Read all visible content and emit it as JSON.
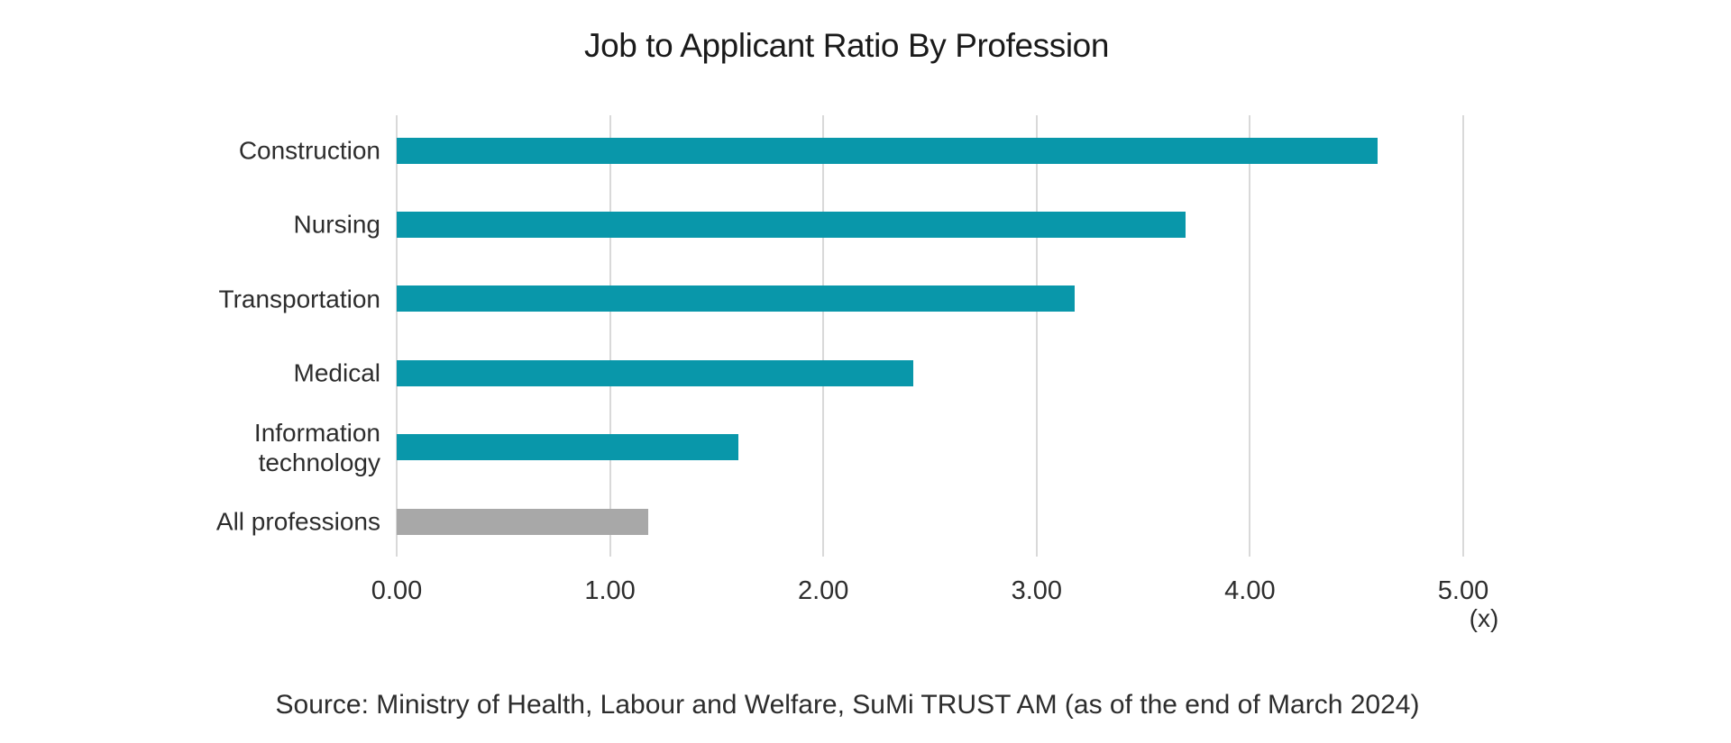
{
  "page": {
    "background_color": "#ffffff",
    "text_color": "#2d2d2d"
  },
  "chart_data": {
    "type": "bar",
    "orientation": "horizontal",
    "title": "Job to Applicant Ratio By Profession",
    "unit_label": "(x)",
    "categories": [
      "Construction",
      "Nursing",
      "Transportation",
      "Medical",
      "Information technology",
      "All professions"
    ],
    "values": [
      4.6,
      3.7,
      3.18,
      2.42,
      1.6,
      1.18
    ],
    "bar_colors": [
      "#0997aa",
      "#0997aa",
      "#0997aa",
      "#0997aa",
      "#0997aa",
      "#a8a8a8"
    ],
    "accent_color": "#0997aa",
    "highlight_gray": "#a8a8a8",
    "x_tick_values": [
      0,
      1,
      2,
      3,
      4,
      5
    ],
    "x_tick_labels": [
      "0.00",
      "1.00",
      "2.00",
      "3.00",
      "4.00",
      "5.00"
    ],
    "xlim": [
      0,
      5
    ],
    "grid": "vertical-gridlines-on",
    "gridline_color": "#d9d9d9",
    "legend": "none",
    "source": "Source: Ministry of Health, Labour and Welfare, SuMi TRUST AM (as of the end of March 2024)"
  }
}
